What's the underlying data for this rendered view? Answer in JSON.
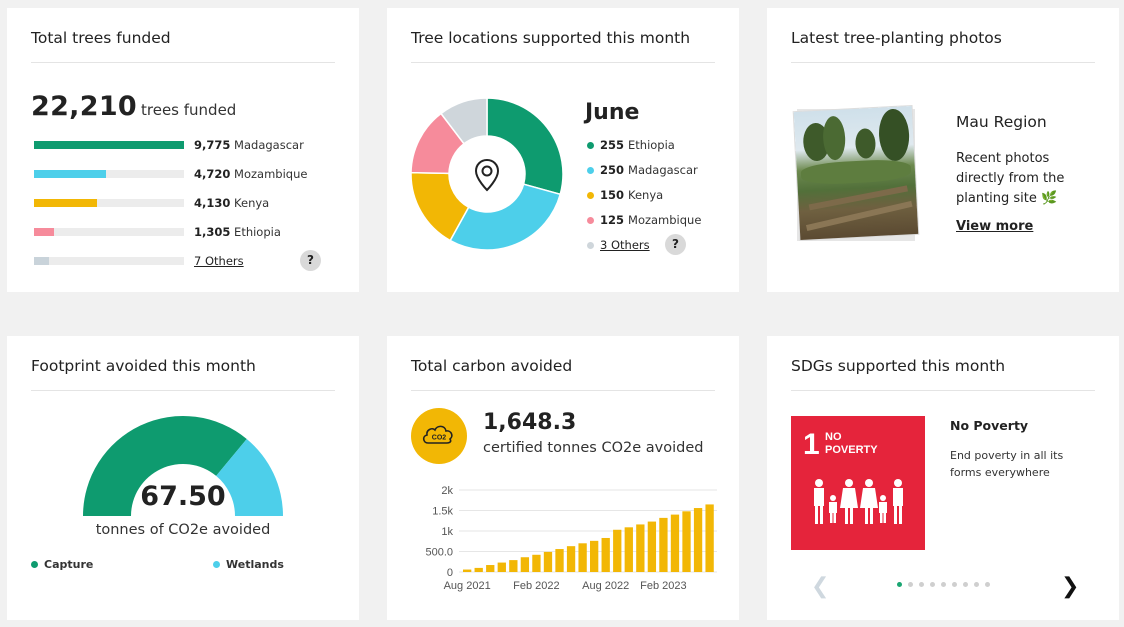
{
  "trees_card": {
    "title": "Total trees funded",
    "total": "22,210",
    "unit": "trees funded",
    "rows": [
      {
        "value": "9,775",
        "name": "Madagascar",
        "fraction": 1.0,
        "color": "#0e9b6f"
      },
      {
        "value": "4,720",
        "name": "Mozambique",
        "fraction": 0.483,
        "color": "#4dcfea"
      },
      {
        "value": "4,130",
        "name": "Kenya",
        "fraction": 0.423,
        "color": "#f2b705"
      },
      {
        "value": "1,305",
        "name": "Ethiopia",
        "fraction": 0.134,
        "color": "#f68b9b"
      }
    ],
    "others": {
      "label": "7 Others",
      "fraction": 0.1,
      "color": "#c9d3da"
    },
    "help": "?"
  },
  "locations_card": {
    "title": "Tree locations supported this month",
    "month": "June",
    "items": [
      {
        "value": "255",
        "name": "Ethiopia",
        "color": "#0e9b6f"
      },
      {
        "value": "250",
        "name": "Madagascar",
        "color": "#4dcfea"
      },
      {
        "value": "150",
        "name": "Kenya",
        "color": "#f2b705"
      },
      {
        "value": "125",
        "name": "Mozambique",
        "color": "#f68b9b"
      }
    ],
    "others": {
      "label": "3 Others",
      "value": 90,
      "color": "#cfd6db"
    },
    "help": "?",
    "center_icon": "map-pin-icon"
  },
  "photos_card": {
    "title": "Latest tree-planting photos",
    "region": "Mau Region",
    "description": "Recent photos directly from the planting site 🌿",
    "view_more": "View more"
  },
  "footprint_card": {
    "title": "Footprint avoided this month",
    "value": "67.50",
    "unit": "tonnes of CO2e avoided",
    "segments": [
      {
        "name": "Capture",
        "fraction": 0.72,
        "color": "#0e9b6f"
      },
      {
        "name": "Wetlands",
        "fraction": 0.28,
        "color": "#4dcfea"
      }
    ]
  },
  "carbon_card": {
    "title": "Total carbon avoided",
    "badge": "CO2",
    "total": "1,648.3",
    "unit": "certified tonnes CO2e avoided"
  },
  "chart_data": {
    "type": "bar",
    "title": "",
    "xlabel": "",
    "ylabel": "",
    "ylim": [
      0,
      2000
    ],
    "y_ticks": [
      "0",
      "500.0",
      "1k",
      "1.5k",
      "2k"
    ],
    "x_ticks": [
      {
        "label": "Aug 2021",
        "index": 0
      },
      {
        "label": "Feb 2022",
        "index": 6
      },
      {
        "label": "Aug 2022",
        "index": 12
      },
      {
        "label": "Feb 2023",
        "index": 17
      }
    ],
    "values": [
      60,
      100,
      170,
      230,
      290,
      360,
      420,
      490,
      560,
      630,
      700,
      760,
      830,
      1030,
      1090,
      1160,
      1230,
      1320,
      1400,
      1480,
      1560,
      1648
    ],
    "color": "#f2b705"
  },
  "sdg_card": {
    "title": "SDGs supported this month",
    "tile_number": "1",
    "tile_name": "NO POVERTY",
    "goal_title": "No Poverty",
    "goal_desc": "End poverty in all its forms everywhere",
    "tile_color": "#e5243b",
    "pages": 9,
    "active_page": 0
  }
}
